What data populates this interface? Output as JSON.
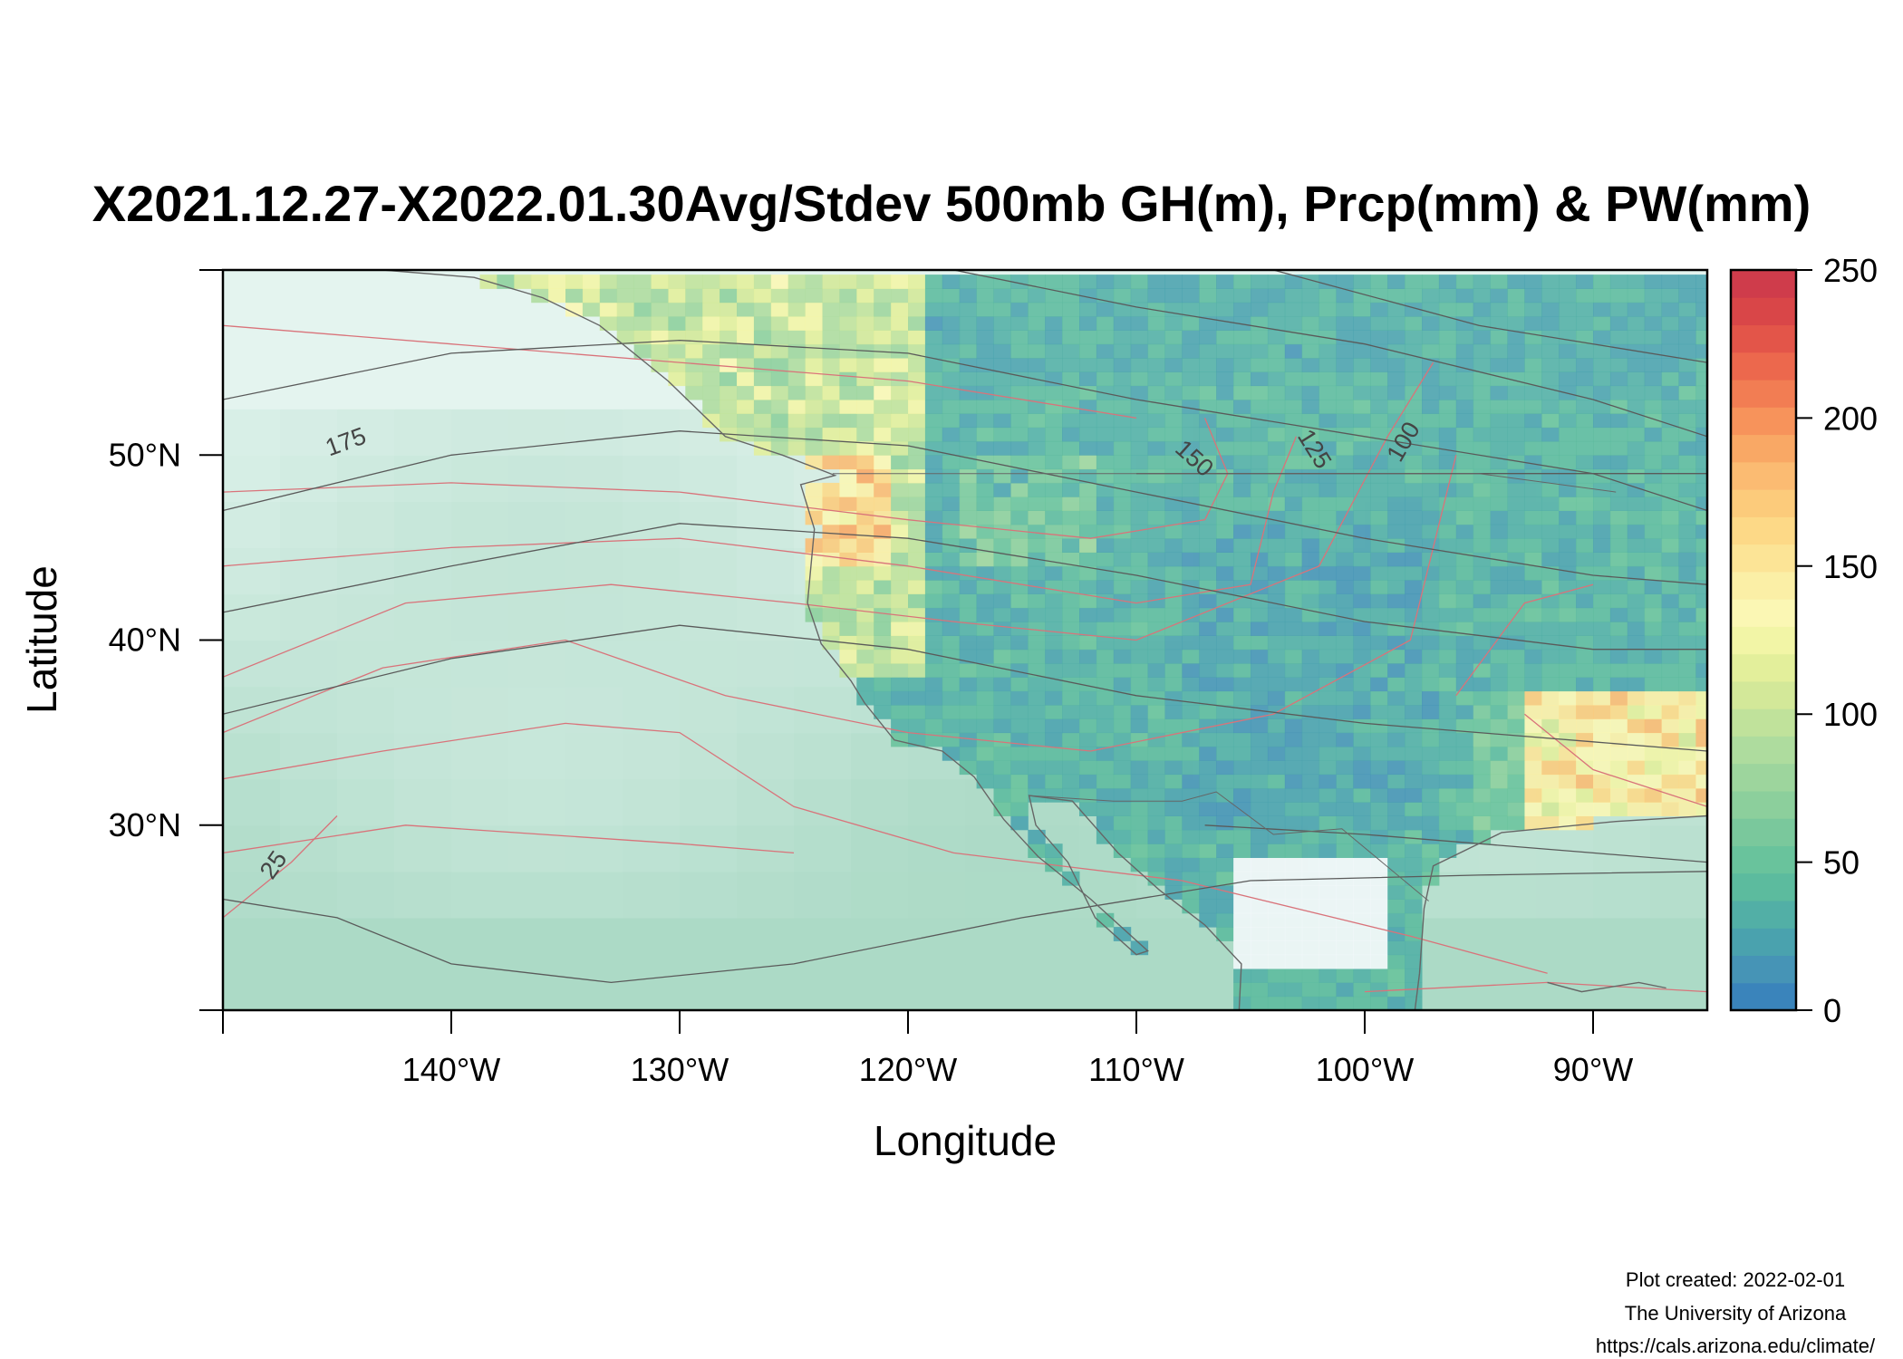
{
  "title": "X2021.12.27-X2022.01.30Avg/Stdev 500mb GH(m), Prcp(mm) & PW(mm)",
  "axes": {
    "x_label": "Longitude",
    "y_label": "Latitude",
    "x_range": [
      -150,
      -85
    ],
    "y_range": [
      20,
      60
    ],
    "x_ticks": [
      {
        "value": -140,
        "label": "140°W"
      },
      {
        "value": -130,
        "label": "130°W"
      },
      {
        "value": -120,
        "label": "120°W"
      },
      {
        "value": -110,
        "label": "110°W"
      },
      {
        "value": -100,
        "label": "100°W"
      },
      {
        "value": -90,
        "label": "90°W"
      }
    ],
    "y_ticks": [
      {
        "value": 30,
        "label": "30°N"
      },
      {
        "value": 40,
        "label": "40°N"
      },
      {
        "value": 50,
        "label": "50°N"
      }
    ]
  },
  "colorbar": {
    "min": 0,
    "max": 250,
    "ticks": [
      {
        "value": 0,
        "label": "0"
      },
      {
        "value": 50,
        "label": "50"
      },
      {
        "value": 100,
        "label": "100"
      },
      {
        "value": 150,
        "label": "150"
      },
      {
        "value": 200,
        "label": "200"
      },
      {
        "value": 250,
        "label": "250"
      }
    ],
    "colors": [
      "#3a84bb",
      "#4694b6",
      "#4aa2ae",
      "#52afa6",
      "#5cbb9e",
      "#69c39c",
      "#7ac89c",
      "#8ccf9c",
      "#9dd59d",
      "#aedc9e",
      "#c0e29b",
      "#d3e899",
      "#e3ef9b",
      "#f2f5a6",
      "#fbf7b4",
      "#fbefa6",
      "#fce496",
      "#fdd987",
      "#fccb7b",
      "#fbbb72",
      "#f9a865",
      "#f7935b",
      "#f27d53",
      "#ec684d",
      "#e35549",
      "#d94648",
      "#cf3c4b"
    ]
  },
  "contour_labels": [
    {
      "lon": -144.5,
      "lat": 50.3,
      "label": "175",
      "angle": -20
    },
    {
      "lon": -107.7,
      "lat": 49.5,
      "label": "150",
      "angle": 42
    },
    {
      "lon": -102.5,
      "lat": 50.1,
      "label": "125",
      "angle": 58
    },
    {
      "lon": -98.0,
      "lat": 50.5,
      "label": "100",
      "angle": -60
    },
    {
      "lon": -147.5,
      "lat": 27.6,
      "label": "25",
      "angle": -55
    }
  ],
  "credits": {
    "line1": "Plot created: 2022-02-01",
    "line2": "The University of Arizona",
    "line3": "https://cals.arizona.edu/climate/"
  },
  "colors": {
    "ocean_field": "#dbf0ea",
    "land_dry": "#7fb0d4",
    "land_moist": "#9fd2b4",
    "contour_red": "#d9737a",
    "contour_gray": "#5a5a5a",
    "coast": "#555555"
  }
}
